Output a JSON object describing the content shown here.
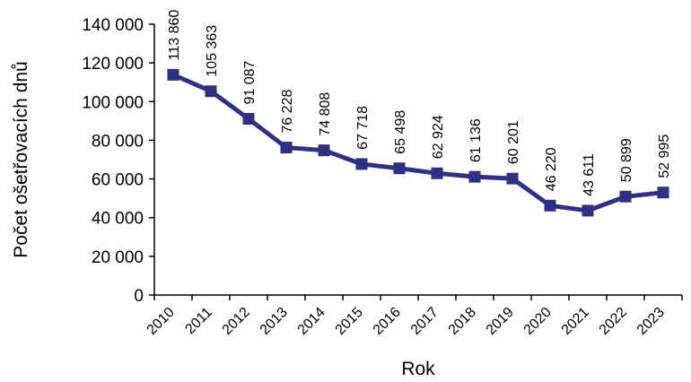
{
  "chart_data": {
    "type": "line",
    "title": "",
    "xlabel": "Rok",
    "ylabel": "Počet ošetřovacích dnů",
    "ylim": [
      0,
      140000
    ],
    "yticks": [
      0,
      20000,
      40000,
      60000,
      80000,
      100000,
      120000,
      140000
    ],
    "ytick_labels": [
      "0",
      "20 000",
      "40 000",
      "60 000",
      "80 000",
      "100 000",
      "120 000",
      "140 000"
    ],
    "categories": [
      "2010",
      "2011",
      "2012",
      "2013",
      "2014",
      "2015",
      "2016",
      "2017",
      "2018",
      "2019",
      "2020",
      "2021",
      "2022",
      "2023"
    ],
    "series": [
      {
        "values": [
          113860,
          105363,
          91087,
          76228,
          74808,
          67718,
          65498,
          62924,
          61136,
          60201,
          46220,
          43611,
          50899,
          52995
        ],
        "labels": [
          "113 860",
          "105 363",
          "91 087",
          "76 228",
          "74 808",
          "67 718",
          "65 498",
          "62 924",
          "61 136",
          "60 201",
          "46 220",
          "43 611",
          "50 899",
          "52 995"
        ],
        "color": "#2e3084",
        "marker": "square"
      }
    ],
    "grid": false,
    "legend": "none"
  }
}
